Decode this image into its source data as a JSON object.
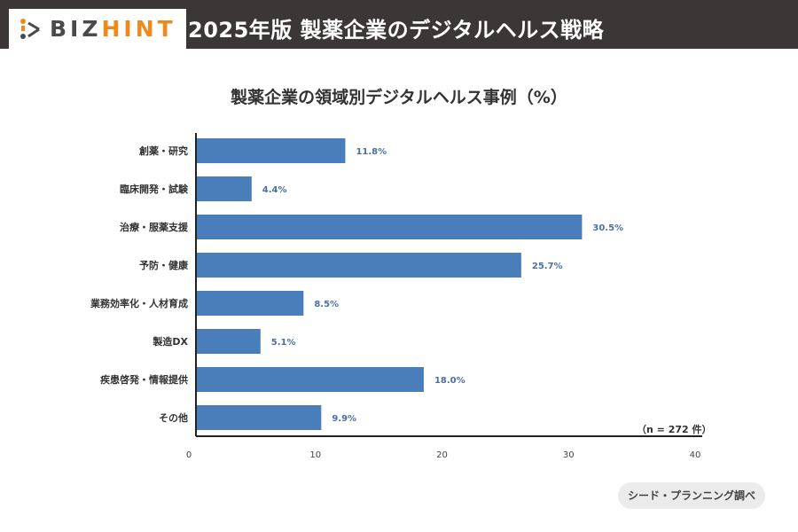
{
  "header": {
    "title": "2025年版 製薬企業のデジタルヘルス戦略",
    "logo_text_a": "BIZ",
    "logo_text_b": "HINT"
  },
  "chart_data": {
    "type": "bar",
    "orientation": "horizontal",
    "title": "製薬企業の領域別デジタルヘルス事例（%）",
    "categories": [
      "創薬・研究",
      "臨床開発・試験",
      "治療・服薬支援",
      "予防・健康",
      "業務効率化・人材育成",
      "製造DX",
      "疾患啓発・情報提供",
      "その他"
    ],
    "values": [
      11.8,
      4.4,
      30.5,
      25.7,
      8.5,
      5.1,
      18.0,
      9.9
    ],
    "data_labels": [
      "11.8%",
      "4.4%",
      "30.5%",
      "25.7%",
      "8.5%",
      "5.1%",
      "18.0%",
      "9.9%"
    ],
    "xlim": [
      0,
      40
    ],
    "xticks": [
      "0",
      "10",
      "20",
      "30",
      "40"
    ],
    "grid": false,
    "bar_color": "#4a7ebb",
    "label_color": "#4a6fa5",
    "note": "（n = 272 件）"
  },
  "source": "シード・プランニング調べ"
}
